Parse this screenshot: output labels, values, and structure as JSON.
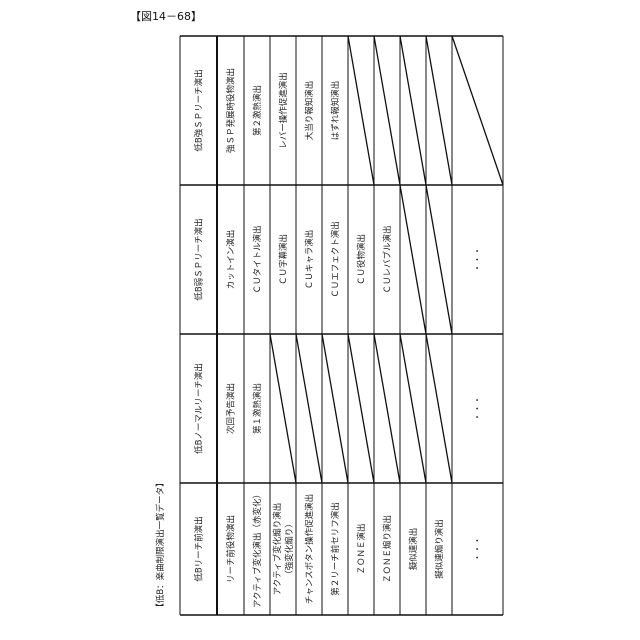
{
  "title": "【図14－68】",
  "caption": "【低B：楽曲制限演出一覧データ】",
  "sections": [
    {
      "header": "低Bリーチ前演出",
      "cells": [
        "リーチ前役物演出",
        "アクティブ変化演出（赤変化）",
        "アクティブ変化煽り演出\n（強変化煽り）",
        "チャンスボタン操作促進演出",
        "第２リーチ前セリフ演出",
        "ＺＯＮＥ演出",
        "ＺＯＮＥ煽り演出",
        "擬似連演出",
        "擬似連煽り演出",
        "・・・"
      ]
    },
    {
      "header": "低Bノーマルリーチ演出",
      "cells": [
        "次回予告演出",
        "第１激熱演出",
        null,
        null,
        null,
        null,
        null,
        null,
        null,
        "・・・"
      ]
    },
    {
      "header": "低B弱ＳＰリーチ演出",
      "cells": [
        "カットイン演出",
        "ＣＵタイトル演出",
        "ＣＵ字幕演出",
        "ＣＵキャラ演出",
        "ＣＵエフェクト演出",
        "ＣＵ役物演出",
        "ＣＵレバブル演出",
        null,
        null,
        "・・・"
      ]
    },
    {
      "header": "低B強ＳＰリーチ演出",
      "cells": [
        "強ＳＰ発展時役物演出",
        "第２激熱演出",
        "レバー操作促進演出",
        "大当り報知演出",
        "はずれ報知演出",
        null,
        null,
        null,
        null,
        null
      ]
    }
  ]
}
